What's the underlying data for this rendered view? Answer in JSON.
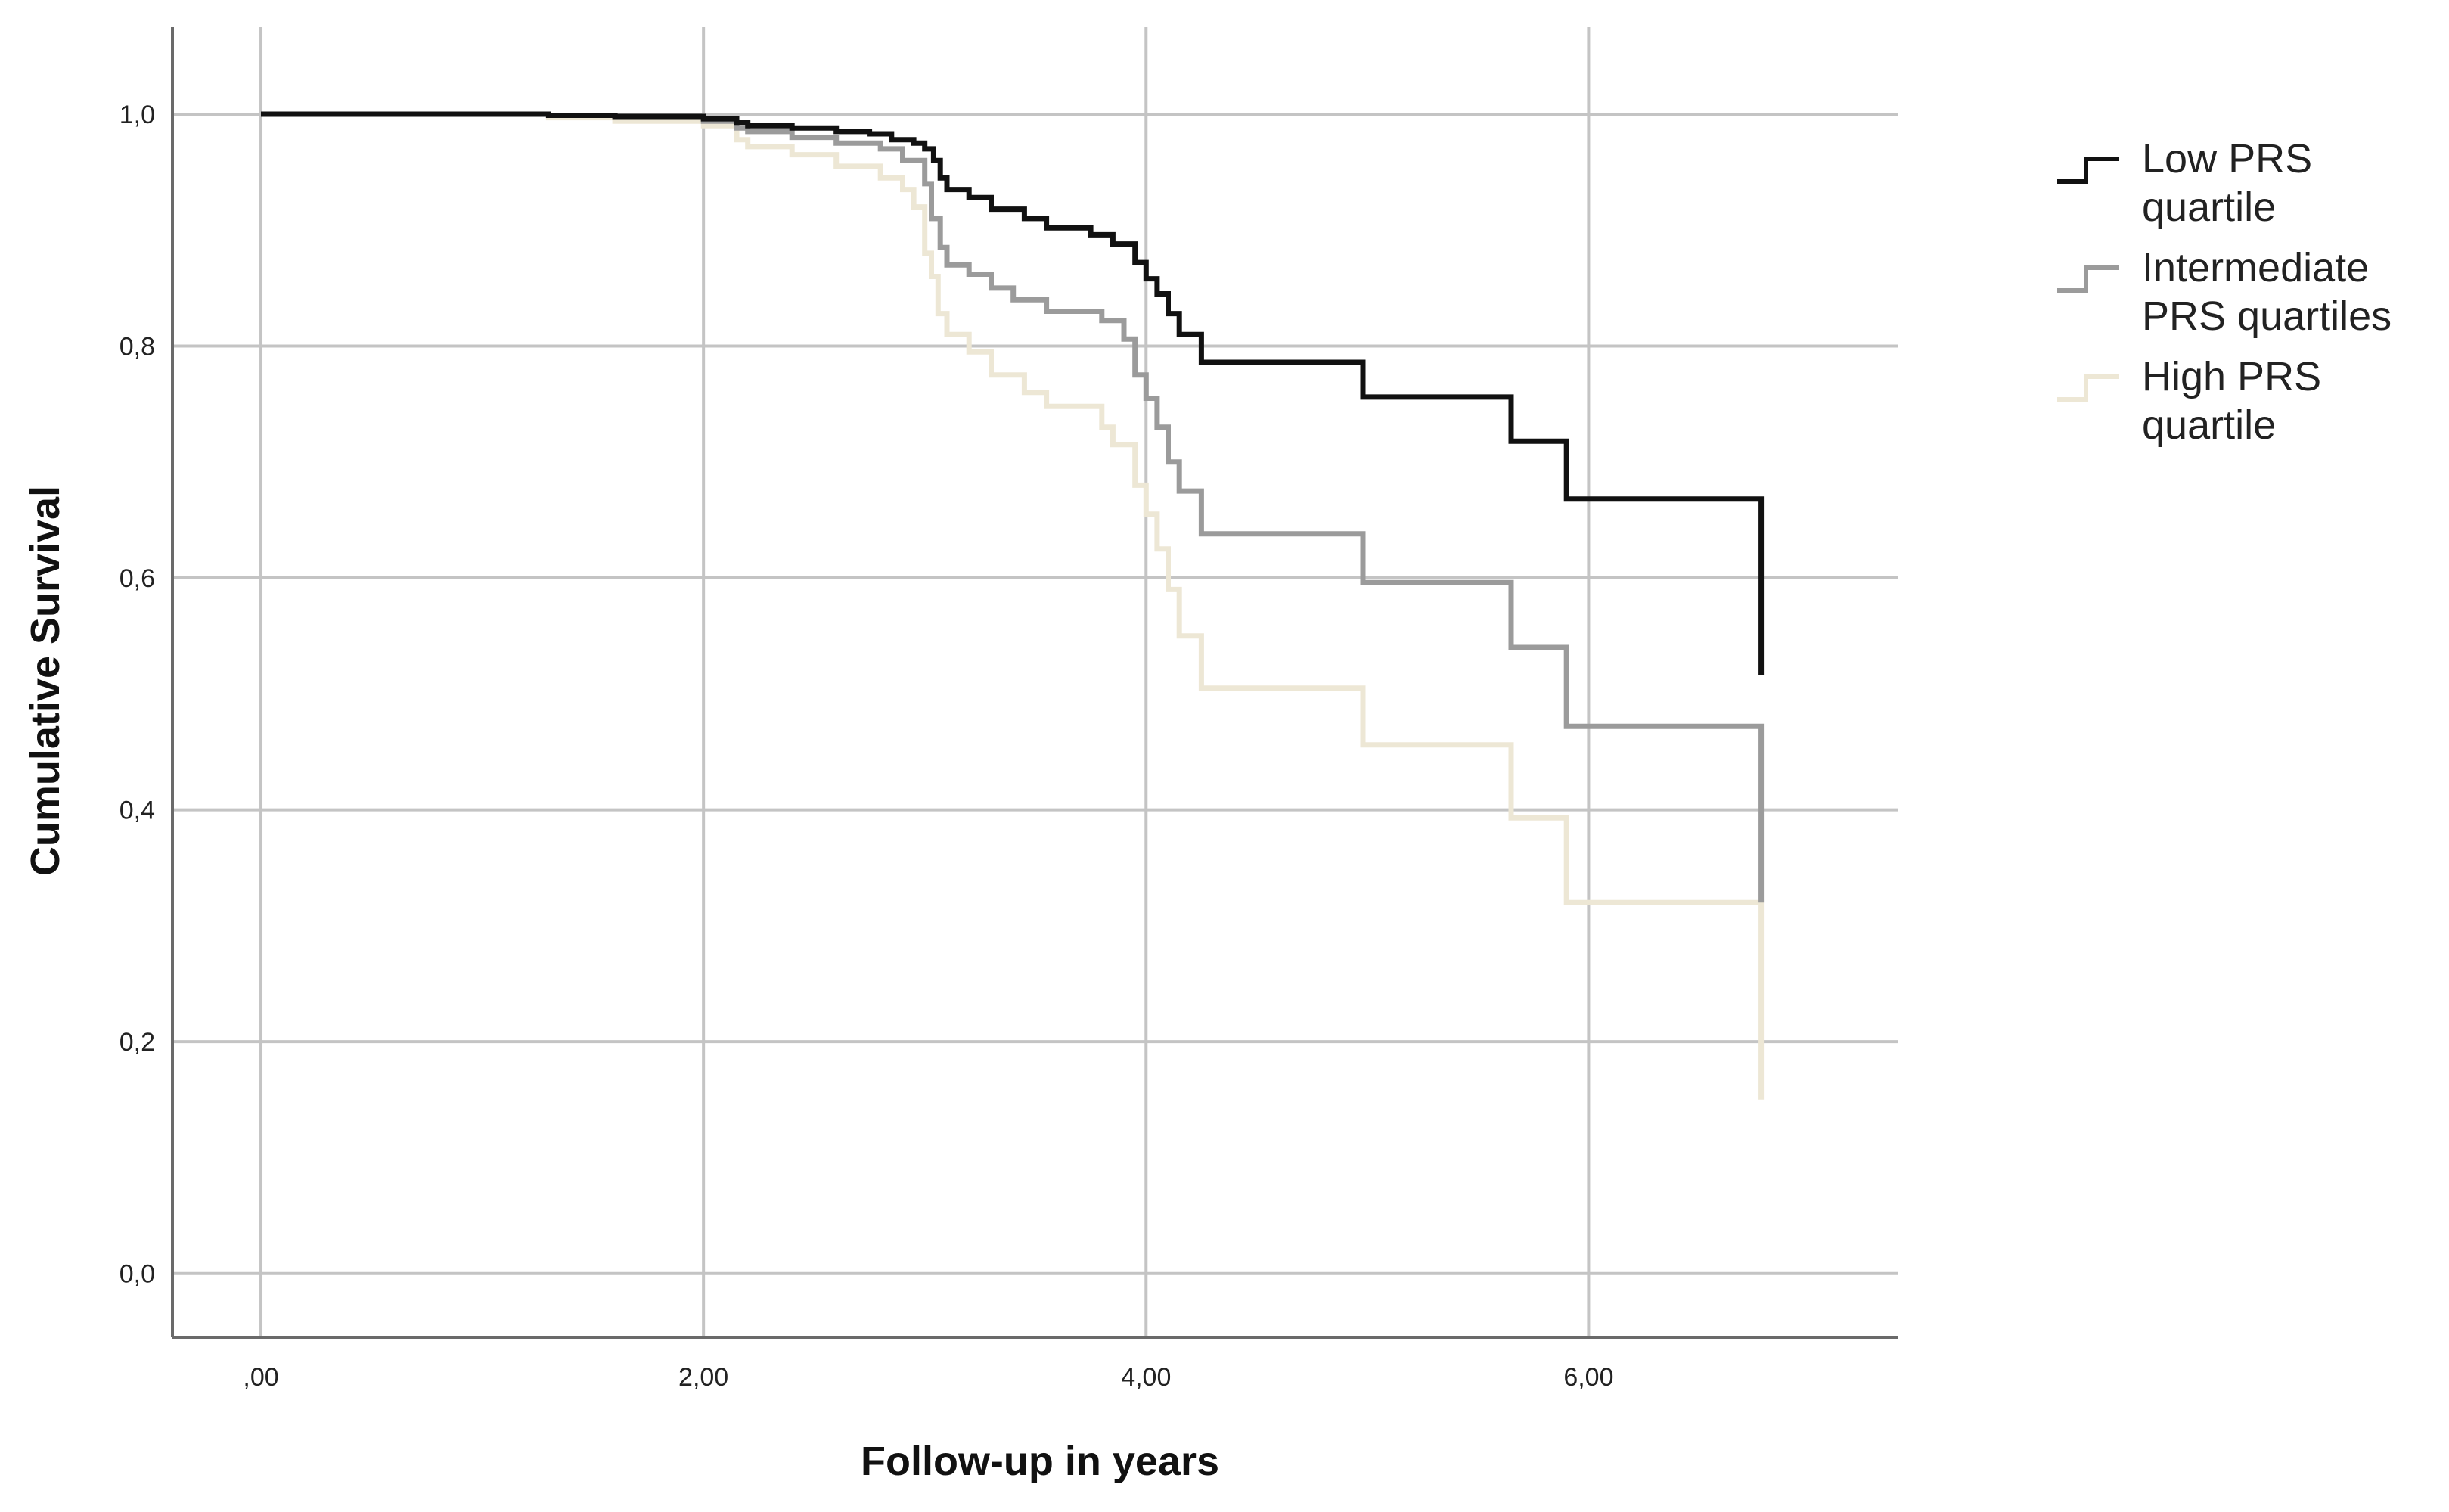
{
  "chart_data": {
    "type": "line",
    "title": "",
    "xlabel": "Follow-up in years",
    "ylabel": "Cumulative Survival",
    "xlim": [
      -0.4,
      7.4
    ],
    "ylim": [
      -0.055,
      1.075
    ],
    "grid": true,
    "legend_position": "right-top",
    "x_ticks": [
      {
        "value": 0,
        "label": ",00"
      },
      {
        "value": 2,
        "label": "2,00"
      },
      {
        "value": 4,
        "label": "4,00"
      },
      {
        "value": 6,
        "label": "6,00"
      }
    ],
    "y_ticks": [
      {
        "value": 0.0,
        "label": "0,0"
      },
      {
        "value": 0.2,
        "label": "0,2"
      },
      {
        "value": 0.4,
        "label": "0,4"
      },
      {
        "value": 0.6,
        "label": "0,6"
      },
      {
        "value": 0.8,
        "label": "0,8"
      },
      {
        "value": 1.0,
        "label": "1,0"
      }
    ],
    "series": [
      {
        "name_lines": [
          "Low PRS",
          "quartile"
        ],
        "color": "#111111",
        "points": [
          [
            0,
            1.0
          ],
          [
            1.3,
            0.999
          ],
          [
            1.6,
            0.998
          ],
          [
            2.0,
            0.996
          ],
          [
            2.15,
            0.993
          ],
          [
            2.2,
            0.99
          ],
          [
            2.4,
            0.988
          ],
          [
            2.6,
            0.985
          ],
          [
            2.75,
            0.983
          ],
          [
            2.85,
            0.978
          ],
          [
            2.95,
            0.975
          ],
          [
            3.0,
            0.97
          ],
          [
            3.04,
            0.96
          ],
          [
            3.07,
            0.945
          ],
          [
            3.1,
            0.935
          ],
          [
            3.2,
            0.928
          ],
          [
            3.3,
            0.918
          ],
          [
            3.45,
            0.91
          ],
          [
            3.55,
            0.902
          ],
          [
            3.75,
            0.896
          ],
          [
            3.85,
            0.888
          ],
          [
            3.95,
            0.872
          ],
          [
            4.0,
            0.858
          ],
          [
            4.05,
            0.845
          ],
          [
            4.1,
            0.828
          ],
          [
            4.15,
            0.81
          ],
          [
            4.25,
            0.786
          ],
          [
            4.98,
            0.756
          ],
          [
            5.65,
            0.718
          ],
          [
            5.9,
            0.668
          ],
          [
            6.78,
            0.516
          ]
        ]
      },
      {
        "name_lines": [
          "Intermediate",
          "PRS quartiles"
        ],
        "color": "#9b9b9b",
        "points": [
          [
            0,
            1.0
          ],
          [
            1.3,
            0.999
          ],
          [
            1.6,
            0.998
          ],
          [
            2.0,
            0.994
          ],
          [
            2.15,
            0.988
          ],
          [
            2.2,
            0.985
          ],
          [
            2.4,
            0.98
          ],
          [
            2.6,
            0.975
          ],
          [
            2.8,
            0.97
          ],
          [
            2.9,
            0.96
          ],
          [
            3.0,
            0.94
          ],
          [
            3.03,
            0.91
          ],
          [
            3.07,
            0.885
          ],
          [
            3.1,
            0.87
          ],
          [
            3.2,
            0.862
          ],
          [
            3.3,
            0.85
          ],
          [
            3.4,
            0.84
          ],
          [
            3.55,
            0.83
          ],
          [
            3.8,
            0.822
          ],
          [
            3.9,
            0.806
          ],
          [
            3.95,
            0.775
          ],
          [
            4.0,
            0.755
          ],
          [
            4.05,
            0.73
          ],
          [
            4.1,
            0.7
          ],
          [
            4.15,
            0.675
          ],
          [
            4.25,
            0.638
          ],
          [
            4.98,
            0.596
          ],
          [
            5.65,
            0.54
          ],
          [
            5.9,
            0.472
          ],
          [
            6.78,
            0.32
          ]
        ]
      },
      {
        "name_lines": [
          "High PRS",
          "quartile"
        ],
        "color": "#ede7d5",
        "points": [
          [
            0,
            1.0
          ],
          [
            1.3,
            0.997
          ],
          [
            1.6,
            0.994
          ],
          [
            2.0,
            0.99
          ],
          [
            2.15,
            0.978
          ],
          [
            2.2,
            0.972
          ],
          [
            2.4,
            0.965
          ],
          [
            2.6,
            0.955
          ],
          [
            2.8,
            0.945
          ],
          [
            2.9,
            0.935
          ],
          [
            2.95,
            0.92
          ],
          [
            3.0,
            0.88
          ],
          [
            3.03,
            0.86
          ],
          [
            3.06,
            0.828
          ],
          [
            3.1,
            0.81
          ],
          [
            3.2,
            0.795
          ],
          [
            3.3,
            0.775
          ],
          [
            3.45,
            0.76
          ],
          [
            3.55,
            0.748
          ],
          [
            3.8,
            0.73
          ],
          [
            3.85,
            0.715
          ],
          [
            3.95,
            0.68
          ],
          [
            4.0,
            0.655
          ],
          [
            4.05,
            0.625
          ],
          [
            4.1,
            0.59
          ],
          [
            4.15,
            0.55
          ],
          [
            4.25,
            0.505
          ],
          [
            4.98,
            0.456
          ],
          [
            5.65,
            0.393
          ],
          [
            5.9,
            0.32
          ],
          [
            6.78,
            0.15
          ]
        ]
      }
    ]
  }
}
